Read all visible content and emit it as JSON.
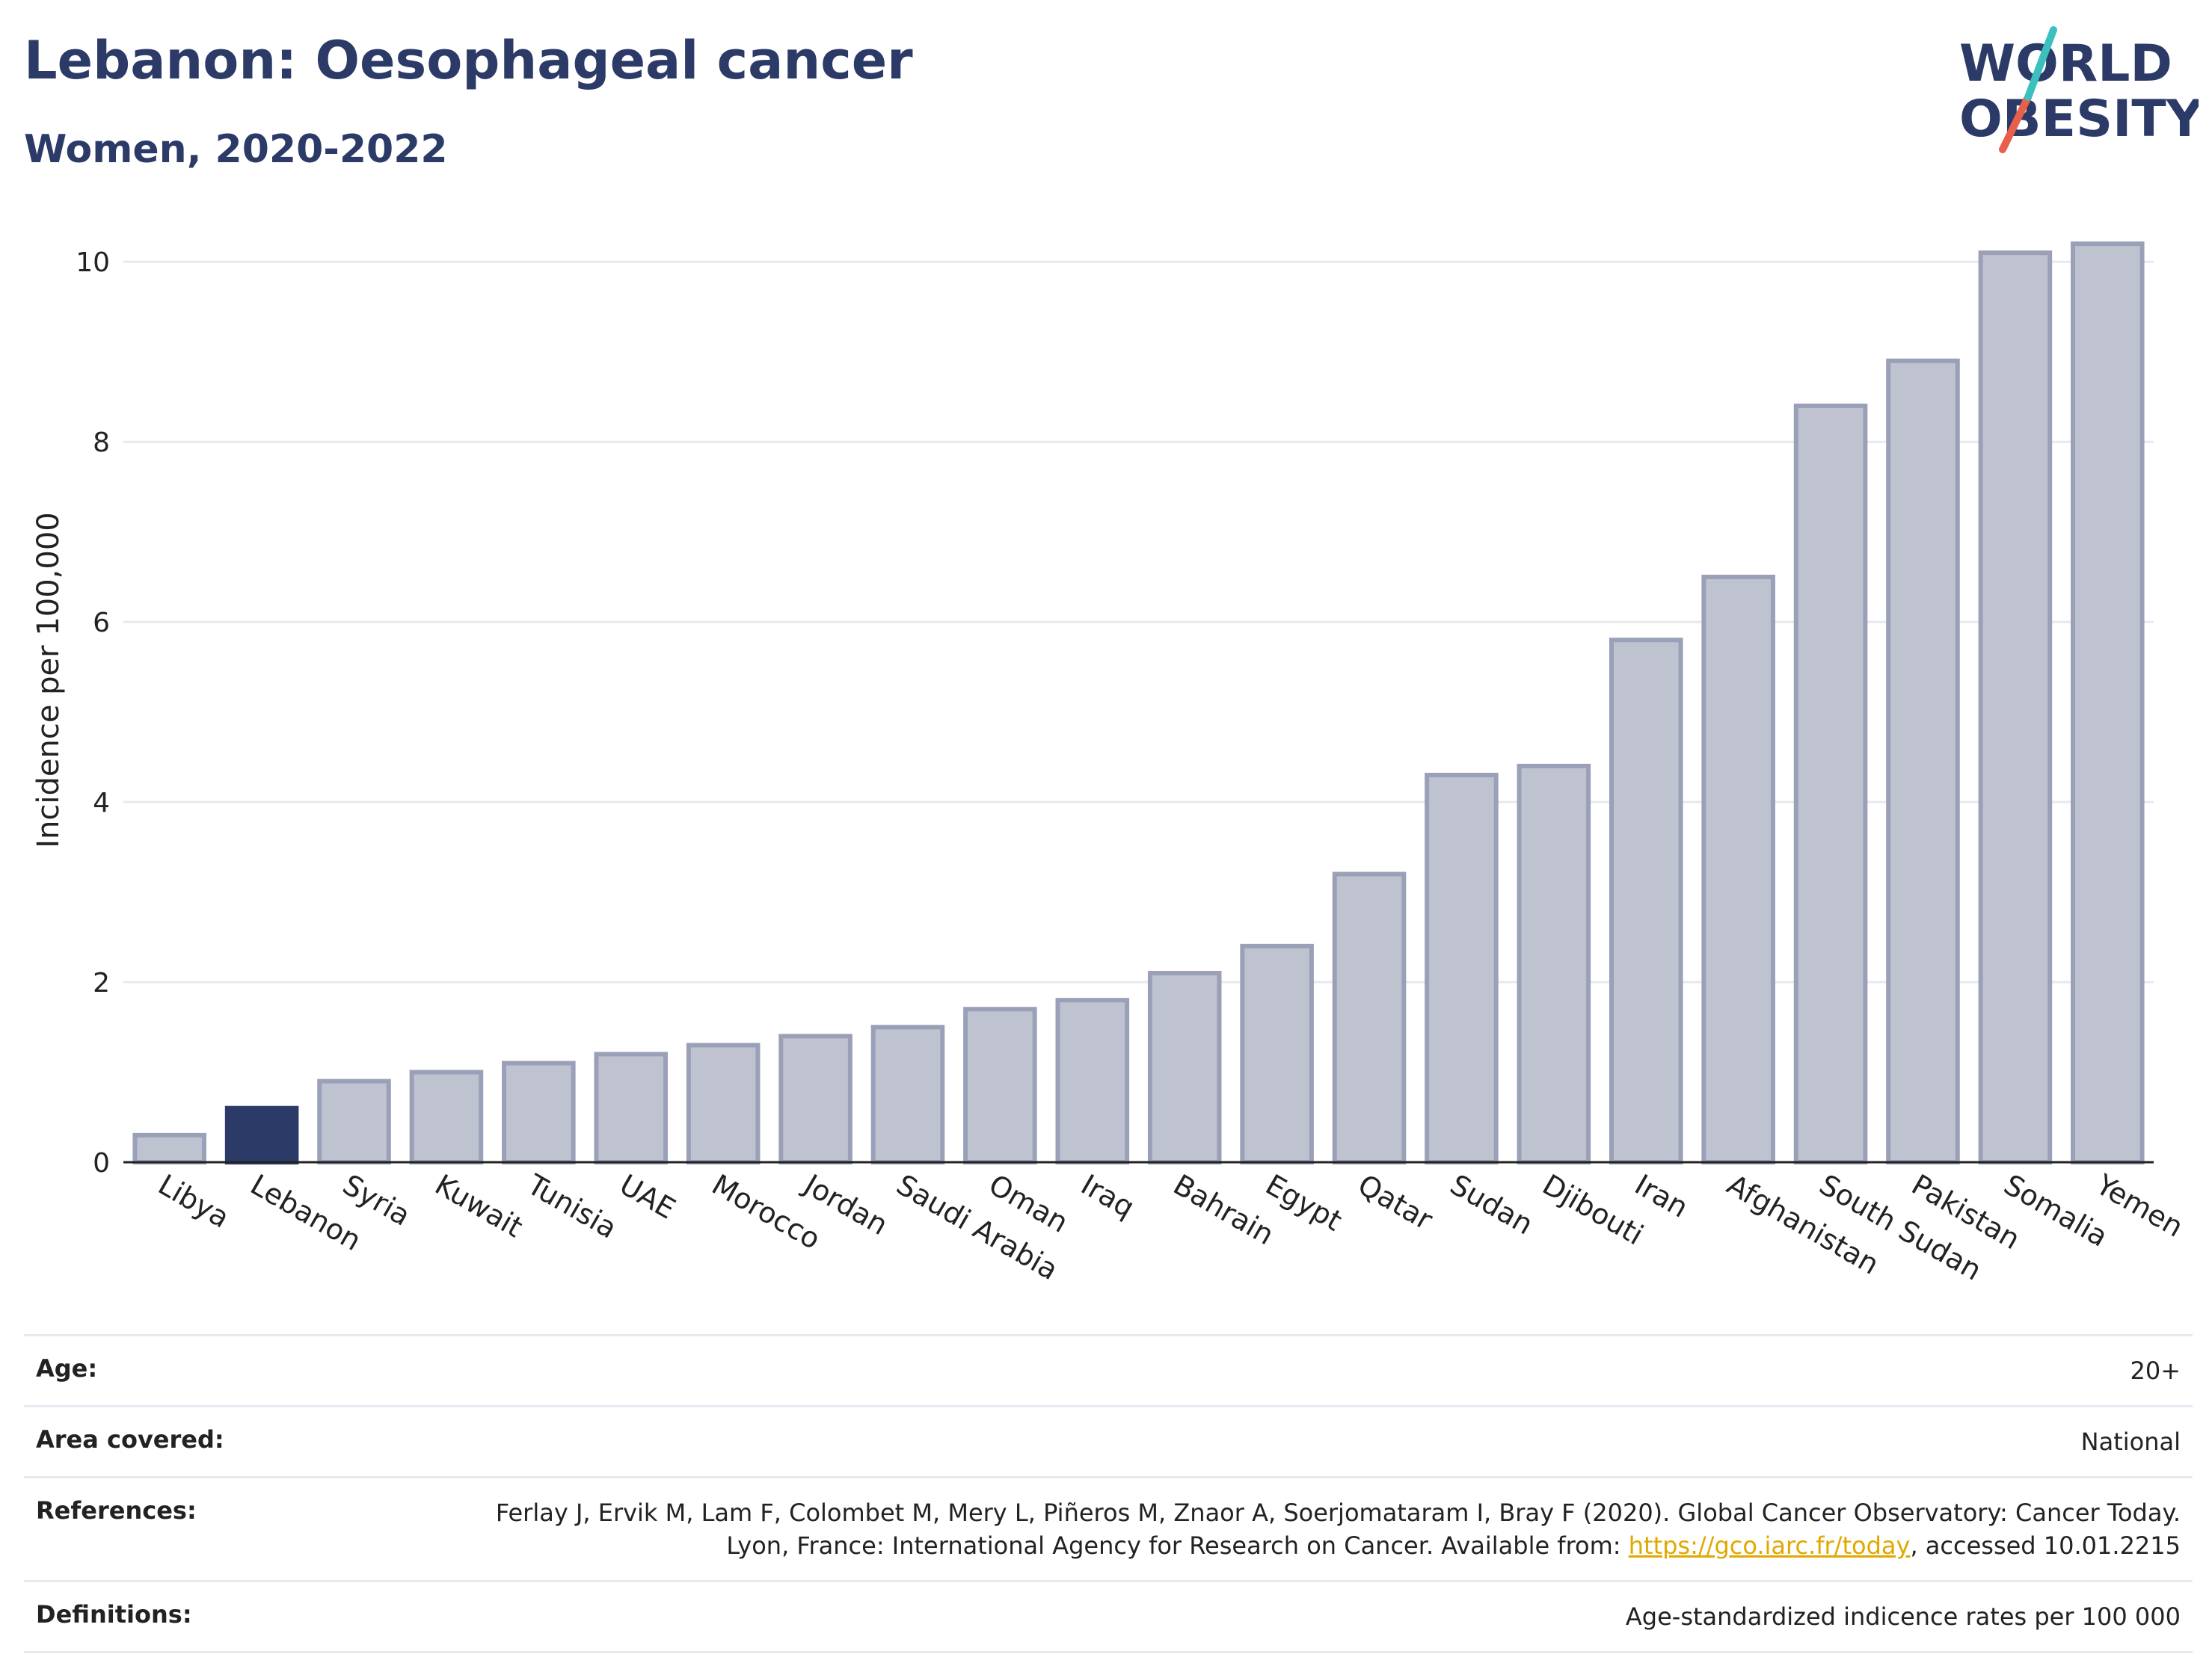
{
  "header": {
    "title": "Lebanon: Oesophageal cancer",
    "subtitle": "Women, 2020-2022"
  },
  "logo": {
    "line1": "WORLD",
    "line2": "OBESITY",
    "accent_teal": "#3bbfbf",
    "accent_red": "#e8604c"
  },
  "colors": {
    "highlight": "#2b3a67",
    "bar_fill": "#bfc3d0",
    "bar_stroke": "#9aa0b8",
    "grid": "#e6e9ef"
  },
  "chart_data": {
    "type": "bar",
    "title": "Lebanon: Oesophageal cancer",
    "subtitle": "Women, 2020-2022",
    "xlabel": "",
    "ylabel": "Incidence per 100,000",
    "ylim": [
      0,
      10.5
    ],
    "yticks": [
      0,
      2,
      4,
      6,
      8,
      10
    ],
    "grid": true,
    "highlight": "Lebanon",
    "categories": [
      "Libya",
      "Lebanon",
      "Syria",
      "Kuwait",
      "Tunisia",
      "UAE",
      "Morocco",
      "Jordan",
      "Saudi Arabia",
      "Oman",
      "Iraq",
      "Bahrain",
      "Egypt",
      "Qatar",
      "Sudan",
      "Djibouti",
      "Iran",
      "Afghanistan",
      "South Sudan",
      "Pakistan",
      "Somalia",
      "Yemen"
    ],
    "values": [
      0.3,
      0.6,
      0.9,
      1.0,
      1.1,
      1.2,
      1.3,
      1.4,
      1.5,
      1.7,
      1.8,
      2.1,
      2.4,
      3.2,
      4.3,
      4.4,
      5.8,
      6.5,
      8.4,
      8.9,
      10.1,
      10.2
    ]
  },
  "info": {
    "age_label": "Age:",
    "age_value": "20+",
    "area_label": "Area covered:",
    "area_value": "National",
    "references_label": "References:",
    "references_text_1": "Ferlay J, Ervik M, Lam F, Colombet M, Mery L, Piñeros M, Znaor A, Soerjomataram I, Bray F (2020). Global Cancer Observatory: Cancer Today. Lyon, France: International Agency for Research on Cancer. Available from: ",
    "references_link": "https://gco.iarc.fr/today",
    "references_text_2": ", accessed 10.01.2215",
    "definitions_label": "Definitions:",
    "definitions_value": "Age-standardized indicence rates per 100 000"
  }
}
